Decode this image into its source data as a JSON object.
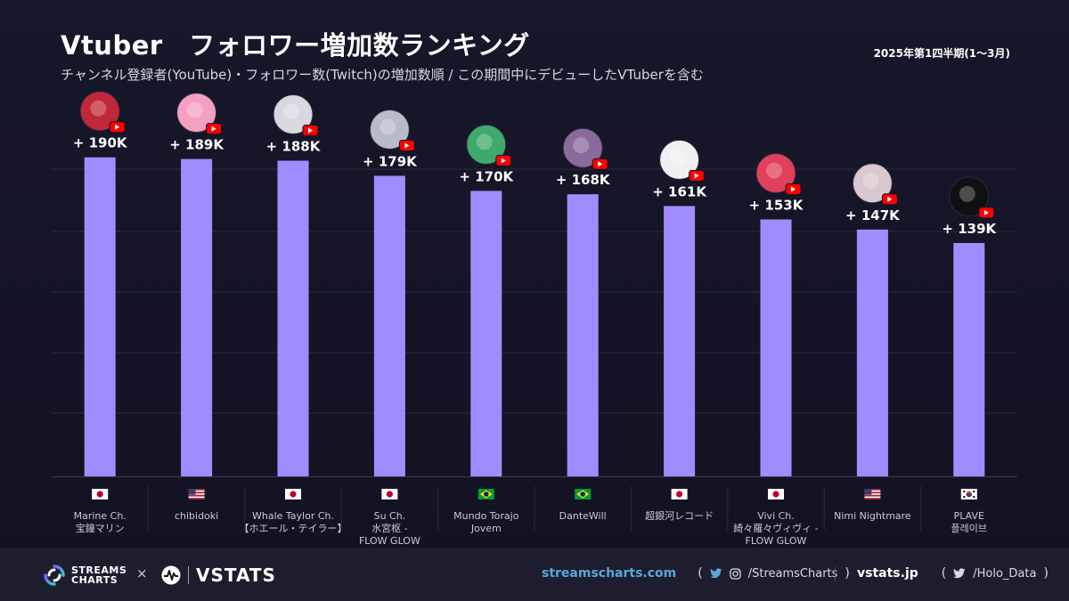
{
  "title": "Vtuber　フォロワー増加数ランキング",
  "subtitle": "チャンネル登録者(YouTube)・フォロワー数(Twitch)の増加数順 / この期間中にデビューしたVTuberを含む",
  "period": "2025年第1四半期(1～3月)",
  "colors": {
    "bar": "#a08cff",
    "background": "#141426",
    "footer": "#1d1d2e",
    "grid": "#2a2a40",
    "youtube": "#ff0000"
  },
  "chart_data": {
    "type": "bar",
    "ylim": [
      0,
      210000
    ],
    "grid": true,
    "categories": [
      {
        "name_lines": [
          "Marine Ch.",
          "宝鐘マリン"
        ],
        "flag": "JP",
        "platform": "youtube",
        "value": 190000,
        "label": "+ 190K",
        "avatar": "#c0283a"
      },
      {
        "name_lines": [
          "chibidoki"
        ],
        "flag": "US",
        "platform": "youtube",
        "value": 189000,
        "label": "+ 189K",
        "avatar": "#f4a0c0"
      },
      {
        "name_lines": [
          "Whale Taylor Ch.",
          "【ホエール・テイラー】"
        ],
        "flag": "JP",
        "platform": "youtube",
        "value": 188000,
        "label": "+ 188K",
        "avatar": "#d8d8e0"
      },
      {
        "name_lines": [
          "Su Ch.",
          "水宮枢 -",
          "FLOW GLOW"
        ],
        "flag": "JP",
        "platform": "youtube",
        "value": 179000,
        "label": "+ 179K",
        "avatar": "#b8bcc8"
      },
      {
        "name_lines": [
          "Mundo Torajo",
          "Jovem"
        ],
        "flag": "BR",
        "platform": "youtube",
        "value": 170000,
        "label": "+ 170K",
        "avatar": "#3faa6a"
      },
      {
        "name_lines": [
          "DanteWill"
        ],
        "flag": "BR",
        "platform": "youtube",
        "value": 168000,
        "label": "+ 168K",
        "avatar": "#8a6a9a"
      },
      {
        "name_lines": [
          "超銀河レコード"
        ],
        "flag": "JP",
        "platform": "youtube",
        "value": 161000,
        "label": "+ 161K",
        "avatar": "#f0f0f0"
      },
      {
        "name_lines": [
          "Vivi Ch.",
          "綺々羅々ヴィヴィ -",
          "FLOW GLOW"
        ],
        "flag": "JP",
        "platform": "youtube",
        "value": 153000,
        "label": "+ 153K",
        "avatar": "#e0405a"
      },
      {
        "name_lines": [
          "Nimi Nightmare"
        ],
        "flag": "US",
        "platform": "youtube",
        "value": 147000,
        "label": "+ 147K",
        "avatar": "#d8c8d0"
      },
      {
        "name_lines": [
          "PLAVE",
          "플레이브"
        ],
        "flag": "KR",
        "platform": "youtube",
        "value": 139000,
        "label": "+ 139K",
        "avatar": "#101010"
      }
    ]
  },
  "footer": {
    "streams_charts_logo": [
      "STREAMS",
      "CHARTS"
    ],
    "times": "×",
    "vstats_logo": "VSTATS",
    "sc_url": "streamscharts.com",
    "sc_social": "/StreamsCharts",
    "vs_url": "vstats.jp",
    "vs_social": "/Holo_Data",
    "paren_open": "(",
    "paren_close": ")"
  },
  "icons": [
    "youtube-icon",
    "twitter-icon",
    "instagram-icon",
    "flag-icon",
    "avatar-icon"
  ]
}
